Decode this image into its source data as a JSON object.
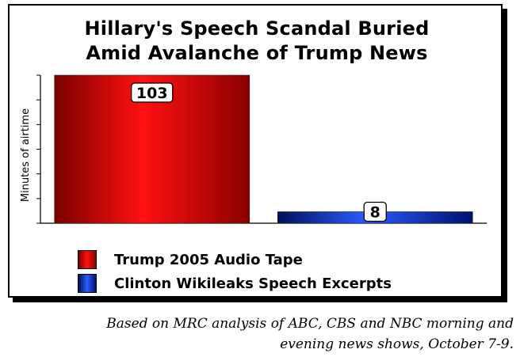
{
  "chart_data": {
    "type": "bar",
    "title": [
      "Hillary's Speech Scandal Buried",
      "Amid Avalanche of Trump News"
    ],
    "ylabel": "Minutes of airtime",
    "ylim": [
      0,
      103
    ],
    "categories": [
      "Trump 2005 Audio Tape",
      "Clinton Wikileaks Speech Excerpts"
    ],
    "values": [
      103,
      8
    ],
    "data_labels": [
      "103",
      "8"
    ],
    "colors": [
      "#e00000",
      "#1030c0"
    ],
    "legend": {
      "placement": "bottom-left",
      "entries": [
        "Trump 2005 Audio Tape",
        "Clinton Wikileaks Speech Excerpts"
      ]
    },
    "grid": false
  },
  "source_note": [
    "Based on MRC analysis of ABC, CBS and NBC morning and",
    "evening news shows, October 7-9."
  ]
}
